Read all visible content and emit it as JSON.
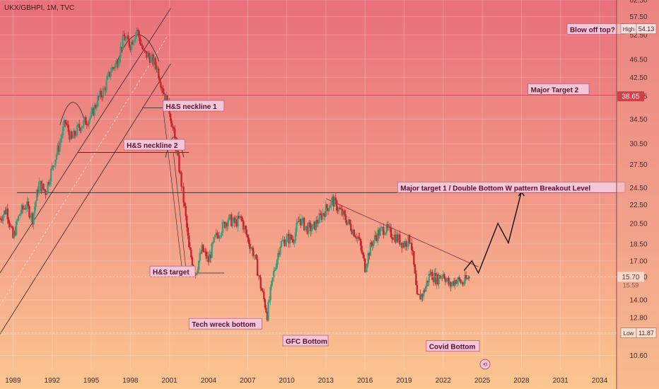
{
  "header": {
    "symbol": "UKX/GBHPI, 1M, TVC"
  },
  "colors": {
    "bg_top": "#e8727a",
    "bg_bottom": "#fbc28f",
    "candle_up": "#3a9e7a",
    "candle_down": "#c8262e",
    "trend": "#2a2a2a",
    "major_target2": "#e0395a",
    "annotation_bg": "#f4c6d6",
    "annotation_border": "#c06080",
    "price_tag": "#d0404a"
  },
  "chart_data": {
    "type": "candlestick",
    "title": "",
    "x_axis": {
      "ticks": [
        "1989",
        "1992",
        "1995",
        "1998",
        "2001",
        "2004",
        "2007",
        "2010",
        "2013",
        "2016",
        "2019",
        "2022",
        "2025",
        "2028",
        "2031",
        "2034"
      ],
      "range": [
        1988.0,
        2035.3
      ]
    },
    "y_axis": {
      "ticks": [
        "10.60",
        "11.80",
        "12.80",
        "14.00",
        "15.70",
        "17.00",
        "18.50",
        "20.50",
        "22.50",
        "24.50",
        "27.50",
        "30.50",
        "34.50",
        "38.65",
        "42.50",
        "46.50",
        "52.50",
        "57.50",
        "62.50"
      ],
      "range": [
        9.9,
        62.5
      ],
      "scale": "log"
    },
    "price_tags": {
      "high_label": "High",
      "high_value": "54.13",
      "current_value": "15.70",
      "current_sub": "15.59",
      "low_label": "Low",
      "low_value": "11.87",
      "major_target2_value": "38.65"
    },
    "series": [
      {
        "x": [
          1988.0,
          1988.5,
          1989.0,
          1989.5,
          1990.0,
          1990.5,
          1991.0,
          1991.5,
          1992.0,
          1992.5,
          1993.0,
          1993.5,
          1994.0,
          1994.5,
          1995.0,
          1995.5,
          1996.0,
          1996.5,
          1997.0,
          1997.5,
          1998.0,
          1998.5,
          1999.0,
          1999.5,
          2000.0,
          2000.5,
          2001.0,
          2001.5,
          2002.0,
          2002.5,
          2003.0,
          2003.5,
          2004.0,
          2004.5,
          2005.0,
          2005.5,
          2006.0,
          2006.5,
          2007.0,
          2007.5,
          2008.0,
          2008.5,
          2009.0,
          2009.5,
          2010.0,
          2010.5,
          2011.0,
          2011.5,
          2012.0,
          2012.5,
          2013.0,
          2013.5,
          2014.0,
          2014.5,
          2015.0,
          2015.5,
          2016.0,
          2016.5,
          2017.0,
          2017.5,
          2018.0,
          2018.5,
          2019.0,
          2019.5,
          2020.0,
          2020.5,
          2021.0,
          2021.5,
          2022.0,
          2022.5,
          2023.0,
          2023.5,
          2024.0
        ],
        "y": [
          21.0,
          22.0,
          19.0,
          21.5,
          22.5,
          21.0,
          25.0,
          24.0,
          27.0,
          30.0,
          34.0,
          31.0,
          33.0,
          34.0,
          35.0,
          38.0,
          40.0,
          44.0,
          46.0,
          52.0,
          50.0,
          54.0,
          48.0,
          47.0,
          45.0,
          40.0,
          36.0,
          30.0,
          24.0,
          18.0,
          16.0,
          18.0,
          17.0,
          19.0,
          20.0,
          21.0,
          20.5,
          21.0,
          19.0,
          17.5,
          15.0,
          13.0,
          16.0,
          18.5,
          19.0,
          19.0,
          21.0,
          20.0,
          20.0,
          21.0,
          22.0,
          23.0,
          22.0,
          21.0,
          20.0,
          19.0,
          16.5,
          18.5,
          19.5,
          20.0,
          19.5,
          19.0,
          18.5,
          19.0,
          14.0,
          14.5,
          16.0,
          15.5,
          16.0,
          15.0,
          15.5,
          15.2,
          15.7
        ]
      }
    ],
    "annotations": [
      {
        "text": "H&S neckline 1",
        "x": 2000.5,
        "y": 36.8
      },
      {
        "text": "H&S neckline 2",
        "x": 1997.5,
        "y": 30.3
      },
      {
        "text": "H&S target",
        "x": 1999.5,
        "y": 16.1
      },
      {
        "text": "Tech wreck bottom",
        "x": 2002.5,
        "y": 12.4
      },
      {
        "text": "GFC Bottom",
        "x": 2009.7,
        "y": 11.4
      },
      {
        "text": "Covid Bottom",
        "x": 2020.7,
        "y": 11.1
      },
      {
        "text": "Blow off top?",
        "x": 2031.5,
        "y": 54.0
      },
      {
        "text": "Major Target 2",
        "x": 2028.5,
        "y": 40.0
      },
      {
        "text": "Major target 1 /  Double Bottom W pattern Breakout Level",
        "x": 2018.5,
        "y": 24.5
      }
    ],
    "legend": "none",
    "grid": true
  }
}
